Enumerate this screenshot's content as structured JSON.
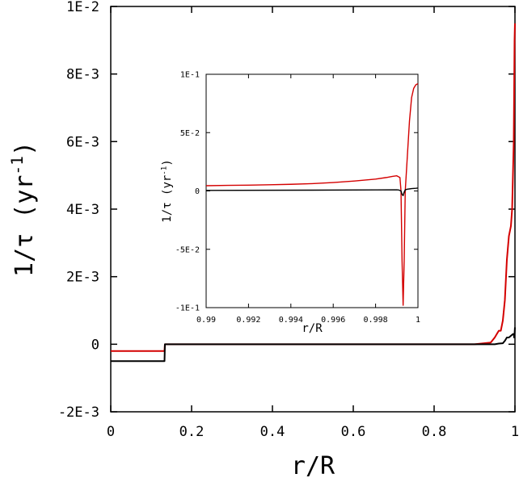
{
  "chart_data": [
    {
      "type": "line",
      "role": "main",
      "xlabel": "r/R",
      "ylabel_prefix": "1/τ (yr",
      "ylabel_exp": "-1",
      "ylabel_suffix": ")",
      "xlim": [
        0,
        1
      ],
      "ylim": [
        -0.002,
        0.01
      ],
      "xticks": [
        0,
        0.2,
        0.4,
        0.6,
        0.8,
        1
      ],
      "xtick_labels": [
        "0",
        "0.2",
        "0.4",
        "0.6",
        "0.8",
        "1"
      ],
      "yticks": [
        -0.002,
        0,
        0.002,
        0.004,
        0.006,
        0.008,
        0.01
      ],
      "ytick_labels": [
        "-2E-3",
        "0",
        "2E-3",
        "4E-3",
        "6E-3",
        "8E-3",
        "1E-2"
      ],
      "grid": false,
      "series": [
        {
          "color": "#d40000",
          "x": [
            0,
            0.133,
            0.134,
            0.9,
            0.94,
            0.95,
            0.955,
            0.96,
            0.965,
            0.97,
            0.975,
            0.98,
            0.985,
            0.99,
            0.993,
            0.995,
            0.997,
            0.998,
            0.999,
            1.0
          ],
          "y": [
            -0.0002,
            -0.0002,
            0,
            0,
            5e-05,
            0.0002,
            0.0003,
            0.0004,
            0.0004,
            0.0007,
            0.0013,
            0.0025,
            0.0032,
            0.0035,
            0.004,
            0.005,
            0.006,
            0.0075,
            0.009,
            0.0095
          ]
        },
        {
          "color": "#000000",
          "x": [
            0,
            0.133,
            0.134,
            0.95,
            0.96,
            0.97,
            0.975,
            0.98,
            0.985,
            0.99,
            0.995,
            0.997,
            0.998,
            0.999,
            1.0
          ],
          "y": [
            -0.0005,
            -0.0005,
            0,
            0,
            2e-05,
            3e-05,
            0.0001,
            0.0002,
            0.0002,
            0.00025,
            0.0003,
            0.0003,
            0.0002,
            0.0003,
            0.0005
          ]
        }
      ]
    },
    {
      "type": "line",
      "role": "inset",
      "xlabel": "r/R",
      "ylabel_prefix": "1/τ (yr",
      "ylabel_exp": "-1",
      "ylabel_suffix": ")",
      "xlim": [
        0.99,
        1
      ],
      "ylim": [
        -0.1,
        0.1
      ],
      "xticks": [
        0.99,
        0.992,
        0.994,
        0.996,
        0.998,
        1
      ],
      "xtick_labels": [
        "0.99",
        "0.992",
        "0.994",
        "0.996",
        "0.998",
        "1"
      ],
      "yticks": [
        -0.1,
        -0.05,
        0,
        0.05,
        0.1
      ],
      "ytick_labels": [
        "-1E-1",
        "-5E-2",
        "0",
        "5E-2",
        "1E-1"
      ],
      "grid": false,
      "series": [
        {
          "color": "#d40000",
          "x": [
            0.99,
            0.991,
            0.992,
            0.993,
            0.994,
            0.995,
            0.996,
            0.997,
            0.998,
            0.9985,
            0.9988,
            0.999,
            0.99915,
            0.9992,
            0.99925,
            0.9993,
            0.99935,
            0.9994,
            0.9995,
            0.9996,
            0.9997,
            0.9998,
            0.9999,
            1.0
          ],
          "y": [
            0.0045,
            0.0048,
            0.005,
            0.0053,
            0.0057,
            0.0063,
            0.0072,
            0.0085,
            0.0102,
            0.0115,
            0.0125,
            0.013,
            0.0115,
            0.0,
            -0.06,
            -0.098,
            -0.06,
            0.0,
            0.03,
            0.06,
            0.08,
            0.088,
            0.091,
            0.092
          ]
        },
        {
          "color": "#000000",
          "x": [
            0.99,
            0.995,
            0.998,
            0.999,
            0.9991,
            0.9992,
            0.99925,
            0.9993,
            0.99935,
            0.9994,
            0.9995,
            0.9997,
            0.9999,
            1.0
          ],
          "y": [
            0.0005,
            0.0007,
            0.0009,
            0.001,
            0.0008,
            0.0,
            -0.003,
            -0.004,
            -0.001,
            0.001,
            0.0015,
            0.002,
            0.0023,
            0.0025
          ]
        }
      ]
    }
  ]
}
